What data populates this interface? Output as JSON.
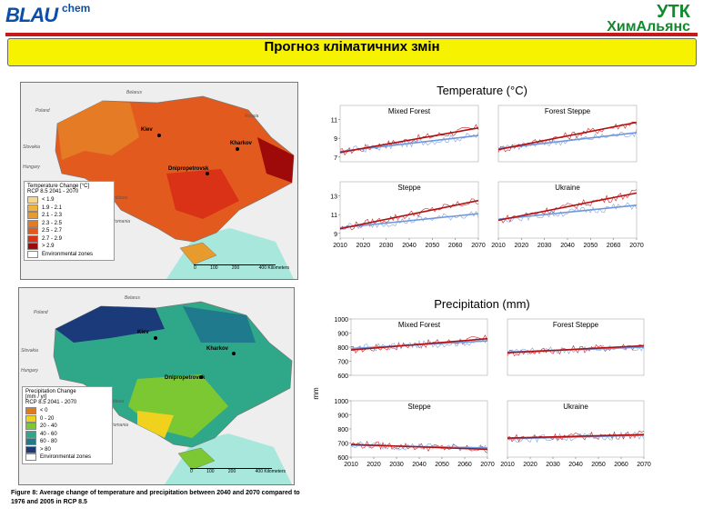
{
  "header": {
    "logo_left": "BLAU",
    "logo_left_sup": "chem",
    "logo_right_1": "УТК",
    "logo_right_2": "ХимАльянс",
    "title": "Прогноз кліматичних змін"
  },
  "maps": {
    "temp": {
      "legend_title": "Temperature Change [°C]",
      "legend_sub": "RCP 8.5     2041 - 2070",
      "classes": [
        {
          "label": "< 1.9",
          "color": "#f8d58a"
        },
        {
          "label": "1.9 - 2.1",
          "color": "#f0b23a"
        },
        {
          "label": "2.1 - 2.3",
          "color": "#e99a2c"
        },
        {
          "label": "2.3 - 2.5",
          "color": "#e57b24"
        },
        {
          "label": "2.5 - 2.7",
          "color": "#e35a1e"
        },
        {
          "label": "2.7 - 2.9",
          "color": "#d93216"
        },
        {
          "label": "> 2.9",
          "color": "#9e0a0a"
        },
        {
          "label": "Environmental zones",
          "color": "#ffffff"
        }
      ],
      "cities": {
        "kyiv": "Kiev",
        "kharkiv": "Kharkov",
        "dnipro": "Dnipropetrovsk"
      },
      "countries": {
        "belarus": "Belarus",
        "russia": "Russia",
        "poland": "Poland",
        "slovakia": "Slovakia",
        "hungary": "Hungary",
        "moldova": "Moldova",
        "romania": "Romania"
      },
      "scale": [
        "0",
        "100",
        "200",
        "400 Kilometers"
      ]
    },
    "prec": {
      "legend_title": "Precipitation Change",
      "legend_unit": "[mm / yr]",
      "legend_sub": "RCP 8.5     2041 - 2070",
      "classes": [
        {
          "label": "< 0",
          "color": "#e07a1e"
        },
        {
          "label": "0 - 20",
          "color": "#f0d21e"
        },
        {
          "label": "20 - 40",
          "color": "#7cc832"
        },
        {
          "label": "40 - 60",
          "color": "#2fa88a"
        },
        {
          "label": "60 - 80",
          "color": "#1e7a8c"
        },
        {
          "label": "> 80",
          "color": "#1a3a7a"
        },
        {
          "label": "Environmental zones",
          "color": "#ffffff"
        }
      ],
      "cities": {
        "kyiv": "Kiev",
        "kharkiv": "Kharkov",
        "dnipro": "Dnipropetrovsk"
      },
      "countries": {
        "belarus": "Belarus",
        "poland": "Poland",
        "slovakia": "Slovakia",
        "hungary": "Hungary",
        "moldova": "Moldova",
        "romania": "Romania"
      },
      "scale": [
        "0",
        "100",
        "200",
        "400 Kilometers"
      ]
    }
  },
  "caption": "Figure 8: Average change of temperature and precipitation between 2040 and 2070 compared to 1976 and 2005 in RCP 8.5",
  "chart_data": [
    {
      "type": "line",
      "title": "Temperature (°C)",
      "ylabel": "",
      "xlim": [
        2010,
        2070
      ],
      "xticks": [
        2010,
        2020,
        2030,
        2040,
        2050,
        2060,
        2070
      ],
      "panels": [
        {
          "title": "Mixed Forest",
          "ylim": [
            6.5,
            12.5
          ],
          "yticks": [
            7,
            9,
            11
          ],
          "trend_red": [
            7.5,
            10.1
          ],
          "trend_blue": [
            7.6,
            9.3
          ]
        },
        {
          "title": "Forest Steppe",
          "ylim": [
            6.5,
            12.5
          ],
          "yticks": [
            7,
            9,
            11
          ],
          "trend_red": [
            7.8,
            10.7
          ],
          "trend_blue": [
            7.9,
            9.6
          ]
        },
        {
          "title": "Steppe",
          "ylim": [
            8.5,
            14.5
          ],
          "yticks": [
            9,
            11,
            13
          ],
          "trend_red": [
            9.5,
            12.5
          ],
          "trend_blue": [
            9.6,
            11.1
          ]
        },
        {
          "title": "Ukraine",
          "ylim": [
            6.5,
            12.5
          ],
          "yticks": [
            7,
            9,
            11
          ],
          "trend_red": [
            8.4,
            11.3
          ],
          "trend_blue": [
            8.5,
            10.0
          ]
        }
      ]
    },
    {
      "type": "line",
      "title": "Precipitation (mm)",
      "ylabel": "mm",
      "xlim": [
        2010,
        2070
      ],
      "xticks": [
        2010,
        2020,
        2030,
        2040,
        2050,
        2060,
        2070
      ],
      "panels": [
        {
          "title": "Mixed Forest",
          "ylim": [
            600,
            1000
          ],
          "yticks": [
            600,
            700,
            800,
            900,
            1000
          ],
          "trend_red": [
            780,
            860
          ],
          "trend_blue": [
            790,
            845
          ]
        },
        {
          "title": "Forest Steppe",
          "ylim": [
            600,
            1000
          ],
          "yticks": [
            600,
            700,
            800,
            900,
            1000
          ],
          "trend_red": [
            760,
            810
          ],
          "trend_blue": [
            765,
            800
          ]
        },
        {
          "title": "Steppe",
          "ylim": [
            600,
            1000
          ],
          "yticks": [
            600,
            700,
            800,
            900,
            1000
          ],
          "trend_red": [
            690,
            655
          ],
          "trend_blue": [
            685,
            665
          ]
        },
        {
          "title": "Ukraine",
          "ylim": [
            600,
            1000
          ],
          "yticks": [
            600,
            700,
            800,
            900,
            1000
          ],
          "trend_red": [
            735,
            760
          ],
          "trend_blue": [
            730,
            755
          ]
        }
      ]
    }
  ]
}
